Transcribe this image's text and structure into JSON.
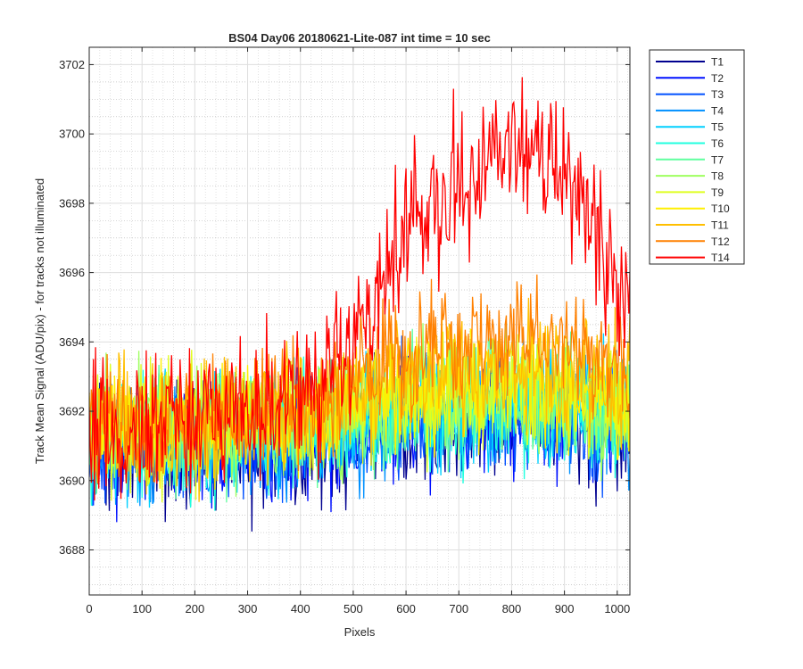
{
  "chart_data": {
    "type": "line",
    "title": "BS04 Day06 20180621-Lite-087 int time = 10 sec",
    "xlabel": "Pixels",
    "ylabel": "Track Mean Signal (ADU/pix) - for tracks not illuminated",
    "xlim": [
      0,
      1024
    ],
    "ylim": [
      3686.7,
      3702.5
    ],
    "x_ticks": [
      0,
      100,
      200,
      300,
      400,
      500,
      600,
      700,
      800,
      900,
      1000
    ],
    "x_tick_labels": [
      "0",
      "100",
      "200",
      "300",
      "400",
      "500",
      "600",
      "700",
      "800",
      "900",
      "1000"
    ],
    "y_ticks": [
      3688,
      3690,
      3692,
      3694,
      3696,
      3698,
      3700,
      3702
    ],
    "y_tick_labels": [
      "3688",
      "3690",
      "3692",
      "3694",
      "3696",
      "3698",
      "3700",
      "3702"
    ],
    "grid": "major and minor",
    "legend_position": "outside top-right",
    "x_profile": [
      0,
      100,
      200,
      300,
      400,
      450,
      500,
      550,
      600,
      650,
      700,
      750,
      800,
      850,
      900,
      950,
      1000,
      1024
    ],
    "series": [
      {
        "name": "T1",
        "color": "#00008f",
        "mean": [
          3690.9,
          3690.7,
          3690.8,
          3690.9,
          3691.0,
          3691.1,
          3691.3,
          3691.5,
          3691.6,
          3691.7,
          3691.7,
          3691.8,
          3691.8,
          3691.8,
          3691.7,
          3691.6,
          3691.4,
          3691.3
        ],
        "amplitude": 1.4
      },
      {
        "name": "T2",
        "color": "#0010ff",
        "mean": [
          3691.0,
          3690.8,
          3690.9,
          3691.0,
          3691.1,
          3691.2,
          3691.4,
          3691.6,
          3691.7,
          3691.8,
          3691.8,
          3691.9,
          3691.9,
          3691.9,
          3691.8,
          3691.7,
          3691.5,
          3691.4
        ],
        "amplitude": 1.4
      },
      {
        "name": "T3",
        "color": "#0050ff",
        "mean": [
          3691.1,
          3690.9,
          3691.0,
          3691.1,
          3691.2,
          3691.3,
          3691.5,
          3691.7,
          3691.8,
          3691.9,
          3691.9,
          3692.0,
          3692.0,
          3692.0,
          3691.9,
          3691.8,
          3691.6,
          3691.5
        ],
        "amplitude": 1.4
      },
      {
        "name": "T4",
        "color": "#0090ff",
        "mean": [
          3691.2,
          3691.0,
          3691.1,
          3691.2,
          3691.3,
          3691.4,
          3691.6,
          3691.8,
          3691.9,
          3692.0,
          3692.0,
          3692.1,
          3692.1,
          3692.1,
          3692.0,
          3691.9,
          3691.7,
          3691.6
        ],
        "amplitude": 1.4
      },
      {
        "name": "T5",
        "color": "#00d0ff",
        "mean": [
          3691.3,
          3691.1,
          3691.2,
          3691.3,
          3691.4,
          3691.5,
          3691.7,
          3691.9,
          3692.0,
          3692.1,
          3692.1,
          3692.2,
          3692.2,
          3692.2,
          3692.1,
          3692.0,
          3691.8,
          3691.7
        ],
        "amplitude": 1.4
      },
      {
        "name": "T6",
        "color": "#20ffdf",
        "mean": [
          3691.4,
          3691.2,
          3691.3,
          3691.4,
          3691.5,
          3691.6,
          3691.8,
          3692.0,
          3692.1,
          3692.2,
          3692.2,
          3692.3,
          3692.3,
          3692.3,
          3692.2,
          3692.1,
          3691.9,
          3691.8
        ],
        "amplitude": 1.4
      },
      {
        "name": "T7",
        "color": "#60ff9f",
        "mean": [
          3691.5,
          3691.3,
          3691.4,
          3691.5,
          3691.6,
          3691.7,
          3691.9,
          3692.1,
          3692.2,
          3692.3,
          3692.3,
          3692.4,
          3692.4,
          3692.4,
          3692.3,
          3692.2,
          3692.0,
          3691.9
        ],
        "amplitude": 1.4
      },
      {
        "name": "T8",
        "color": "#9fff60",
        "mean": [
          3691.6,
          3691.4,
          3691.5,
          3691.6,
          3691.7,
          3691.8,
          3692.0,
          3692.2,
          3692.3,
          3692.4,
          3692.4,
          3692.5,
          3692.5,
          3692.5,
          3692.4,
          3692.3,
          3692.1,
          3692.0
        ],
        "amplitude": 1.4
      },
      {
        "name": "T9",
        "color": "#dfff20",
        "mean": [
          3691.7,
          3691.5,
          3691.6,
          3691.7,
          3691.8,
          3691.9,
          3692.1,
          3692.3,
          3692.4,
          3692.5,
          3692.5,
          3692.6,
          3692.6,
          3692.6,
          3692.5,
          3692.4,
          3692.2,
          3692.1
        ],
        "amplitude": 1.4
      },
      {
        "name": "T10",
        "color": "#ffef00",
        "mean": [
          3691.8,
          3691.6,
          3691.7,
          3691.8,
          3691.9,
          3692.0,
          3692.3,
          3692.5,
          3692.6,
          3692.7,
          3692.7,
          3692.8,
          3692.8,
          3692.8,
          3692.7,
          3692.6,
          3692.4,
          3692.3
        ],
        "amplitude": 1.4
      },
      {
        "name": "T11",
        "color": "#ffbf00",
        "mean": [
          3691.8,
          3691.7,
          3691.8,
          3691.9,
          3692.0,
          3692.2,
          3692.6,
          3692.9,
          3693.1,
          3693.2,
          3693.3,
          3693.3,
          3693.3,
          3693.3,
          3693.2,
          3693.0,
          3692.7,
          3692.5
        ],
        "amplitude": 1.5
      },
      {
        "name": "T12",
        "color": "#ff8000",
        "mean": [
          3691.7,
          3691.6,
          3691.8,
          3692.0,
          3692.3,
          3692.6,
          3692.9,
          3693.3,
          3693.6,
          3693.7,
          3693.8,
          3693.9,
          3694.0,
          3694.0,
          3693.9,
          3693.6,
          3692.9,
          3692.5
        ],
        "amplitude": 1.4
      },
      {
        "name": "T14",
        "color": "#ff0000",
        "mean": [
          3691.7,
          3691.3,
          3691.7,
          3692.0,
          3692.3,
          3692.9,
          3693.9,
          3695.3,
          3697.0,
          3698.0,
          3698.7,
          3699.3,
          3699.4,
          3699.3,
          3698.7,
          3697.5,
          3695.5,
          3694.7
        ],
        "amplitude": 1.7
      }
    ]
  }
}
